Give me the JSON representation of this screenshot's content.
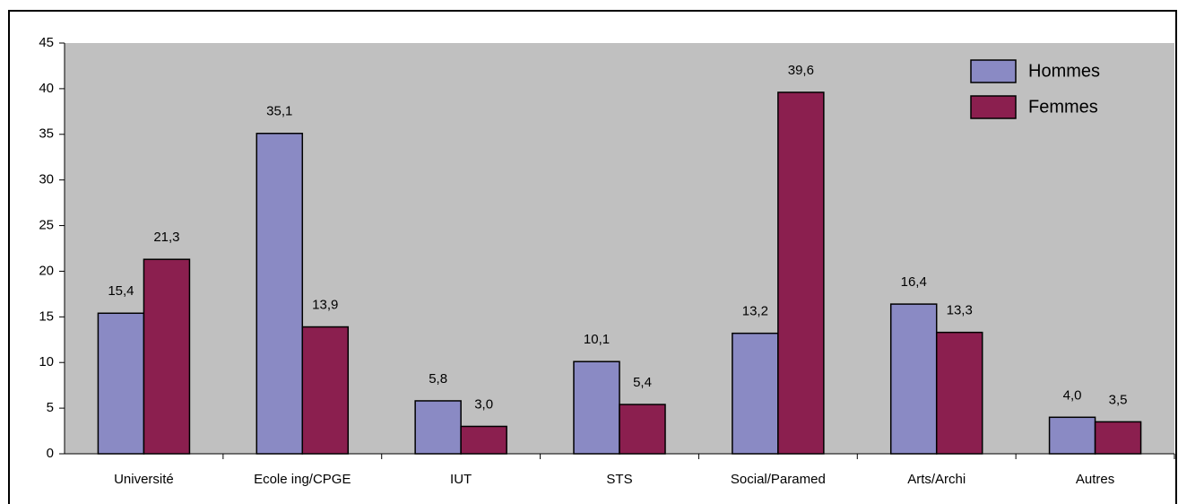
{
  "chart_data": {
    "type": "bar",
    "categories": [
      "Université",
      "Ecole ing/CPGE",
      "IUT",
      "STS",
      "Social/Paramed",
      "Arts/Archi",
      "Autres"
    ],
    "series": [
      {
        "name": "Hommes",
        "color": "#8a8ac4",
        "values": [
          15.4,
          35.1,
          5.8,
          10.1,
          13.2,
          16.4,
          4.0
        ],
        "value_labels": [
          "15,4",
          "35,1",
          "5,8",
          "10,1",
          "13,2",
          "16,4",
          "4,0"
        ]
      },
      {
        "name": "Femmes",
        "color": "#8b1f4f",
        "values": [
          21.3,
          13.9,
          3.0,
          5.4,
          39.6,
          13.3,
          3.5
        ],
        "value_labels": [
          "21,3",
          "13,9",
          "3,0",
          "5,4",
          "39,6",
          "13,3",
          "3,5"
        ]
      }
    ],
    "ylim": [
      0,
      45
    ],
    "yticks": [
      0,
      5,
      10,
      15,
      20,
      25,
      30,
      35,
      40,
      45
    ],
    "grid": false,
    "legend": "top-right"
  }
}
